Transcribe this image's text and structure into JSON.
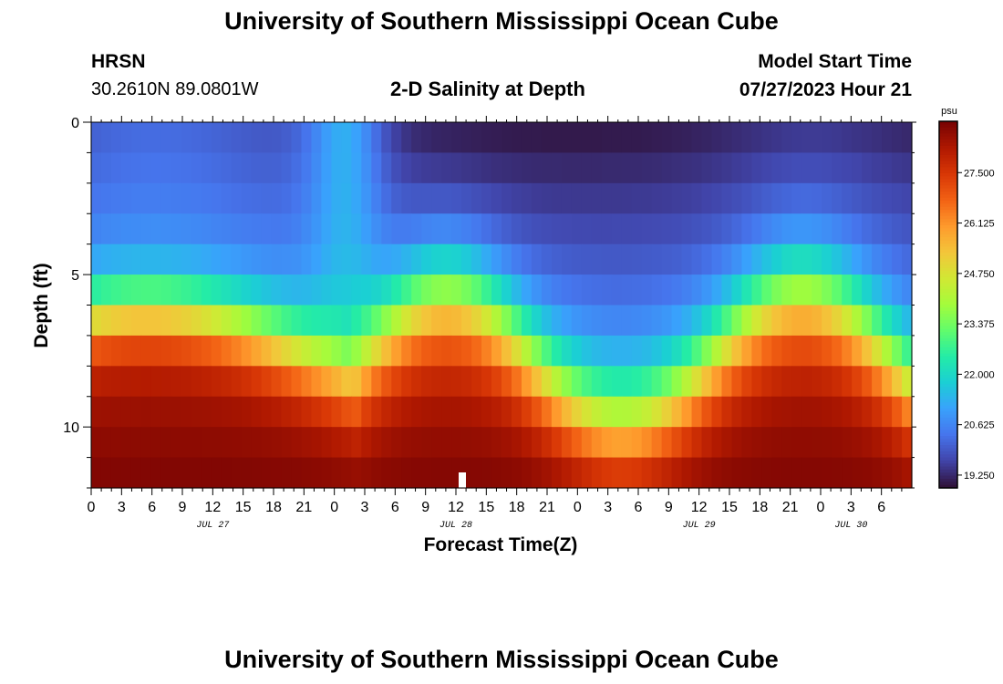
{
  "header": {
    "title": "University of Southern Mississippi Ocean Cube",
    "station": "HRSN",
    "coords": "30.2610N  89.0801W",
    "plot_title": "2-D Salinity at Depth",
    "model_start_label": "Model Start Time",
    "model_start_value": "07/27/2023 Hour 21"
  },
  "footer": {
    "title": "University of Southern Mississippi Ocean Cube"
  },
  "colors": {
    "palette": [
      "#30123b",
      "#4145ab",
      "#4675ed",
      "#39a2fc",
      "#1bcfd4",
      "#24eca6",
      "#61fc6c",
      "#a4fc3b",
      "#d1e834",
      "#f3c63a",
      "#fe9b2d",
      "#f36315",
      "#d93806",
      "#b11901",
      "#7a0403"
    ]
  },
  "chart_data": {
    "type": "heatmap",
    "title": "2-D Salinity at Depth",
    "xlabel": "Forecast Time(Z)",
    "ylabel": "Depth (ft)",
    "x_range_hours": [
      0,
      81
    ],
    "y_range_ft": [
      0,
      12
    ],
    "xticks": [
      {
        "hour": 0,
        "label": "0"
      },
      {
        "hour": 3,
        "label": "3"
      },
      {
        "hour": 6,
        "label": "6"
      },
      {
        "hour": 9,
        "label": "9"
      },
      {
        "hour": 12,
        "label": "12"
      },
      {
        "hour": 15,
        "label": "15"
      },
      {
        "hour": 18,
        "label": "18"
      },
      {
        "hour": 21,
        "label": "21"
      },
      {
        "hour": 24,
        "label": "0"
      },
      {
        "hour": 27,
        "label": "3"
      },
      {
        "hour": 30,
        "label": "6"
      },
      {
        "hour": 33,
        "label": "9"
      },
      {
        "hour": 36,
        "label": "12"
      },
      {
        "hour": 39,
        "label": "15"
      },
      {
        "hour": 42,
        "label": "18"
      },
      {
        "hour": 45,
        "label": "21"
      },
      {
        "hour": 48,
        "label": "0"
      },
      {
        "hour": 51,
        "label": "3"
      },
      {
        "hour": 54,
        "label": "6"
      },
      {
        "hour": 57,
        "label": "9"
      },
      {
        "hour": 60,
        "label": "12"
      },
      {
        "hour": 63,
        "label": "15"
      },
      {
        "hour": 66,
        "label": "18"
      },
      {
        "hour": 69,
        "label": "21"
      },
      {
        "hour": 72,
        "label": "0"
      },
      {
        "hour": 75,
        "label": "3"
      },
      {
        "hour": 78,
        "label": "6"
      }
    ],
    "date_labels": [
      {
        "hour": 12,
        "label": "JUL 27"
      },
      {
        "hour": 36,
        "label": "JUL 28"
      },
      {
        "hour": 60,
        "label": "JUL 29"
      },
      {
        "hour": 75,
        "label": "JUL 30"
      }
    ],
    "yticks": [
      {
        "depth": 0,
        "label": "0"
      },
      {
        "depth": 5,
        "label": "5"
      },
      {
        "depth": 10,
        "label": "10"
      }
    ],
    "colorbar": {
      "unit": "psu",
      "min": 18.9,
      "max": 28.9,
      "ticks": [
        "27.500",
        "26.125",
        "24.750",
        "23.375",
        "22.000",
        "20.625",
        "19.250"
      ],
      "tick_values": [
        27.5,
        26.125,
        24.75,
        23.375,
        22.0,
        20.625,
        19.25
      ]
    },
    "series": [
      {
        "name": "HRSN",
        "values": []
      }
    ]
  }
}
